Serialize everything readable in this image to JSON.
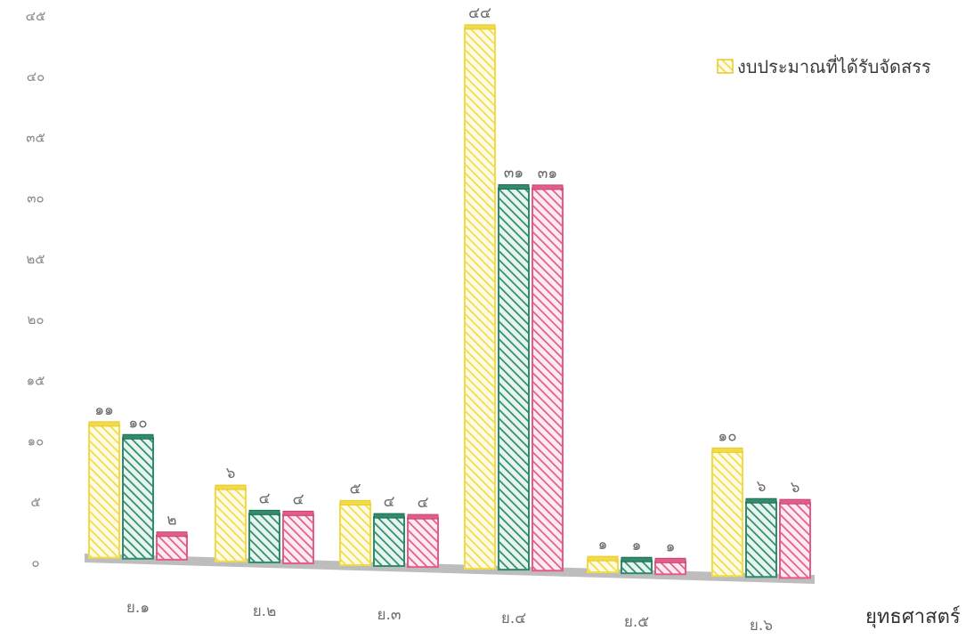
{
  "chart_data": {
    "type": "bar",
    "title": "",
    "xlabel": "ยุทธศาสตร์",
    "ylabel": "",
    "ylim": [
      0,
      45
    ],
    "yticks": [
      {
        "value": 0,
        "label": "๐"
      },
      {
        "value": 5,
        "label": "๕"
      },
      {
        "value": 10,
        "label": "๑๐"
      },
      {
        "value": 15,
        "label": "๑๕"
      },
      {
        "value": 20,
        "label": "๒๐"
      },
      {
        "value": 25,
        "label": "๒๕"
      },
      {
        "value": 30,
        "label": "๓๐"
      },
      {
        "value": 35,
        "label": "๓๕"
      },
      {
        "value": 40,
        "label": "๔๐"
      },
      {
        "value": 45,
        "label": "๔๕"
      }
    ],
    "categories": [
      "ย.๑",
      "ย.๒",
      "ย.๓",
      "ย.๔",
      "ย.๕",
      "ย.๖"
    ],
    "series": [
      {
        "name": "งบประมาณที่ได้รับจัดสรร",
        "color": "#f2dc45",
        "values": [
          11,
          6,
          5,
          44,
          1,
          10
        ],
        "labels": [
          "๑๑",
          "๖",
          "๕",
          "๔๔",
          "๑",
          "๑๐"
        ]
      },
      {
        "color": "#2f8c6c",
        "values": [
          10,
          4,
          4,
          31,
          1,
          6
        ],
        "labels": [
          "๑๐",
          "๔",
          "๔",
          "๓๑",
          "๑",
          "๖"
        ]
      },
      {
        "color": "#e35c8c",
        "values": [
          2,
          4,
          4,
          31,
          1,
          6
        ],
        "labels": [
          "๒",
          "๔",
          "๔",
          "๓๑",
          "๑",
          "๖"
        ]
      }
    ],
    "legend_position": "top-right",
    "grid": false
  }
}
